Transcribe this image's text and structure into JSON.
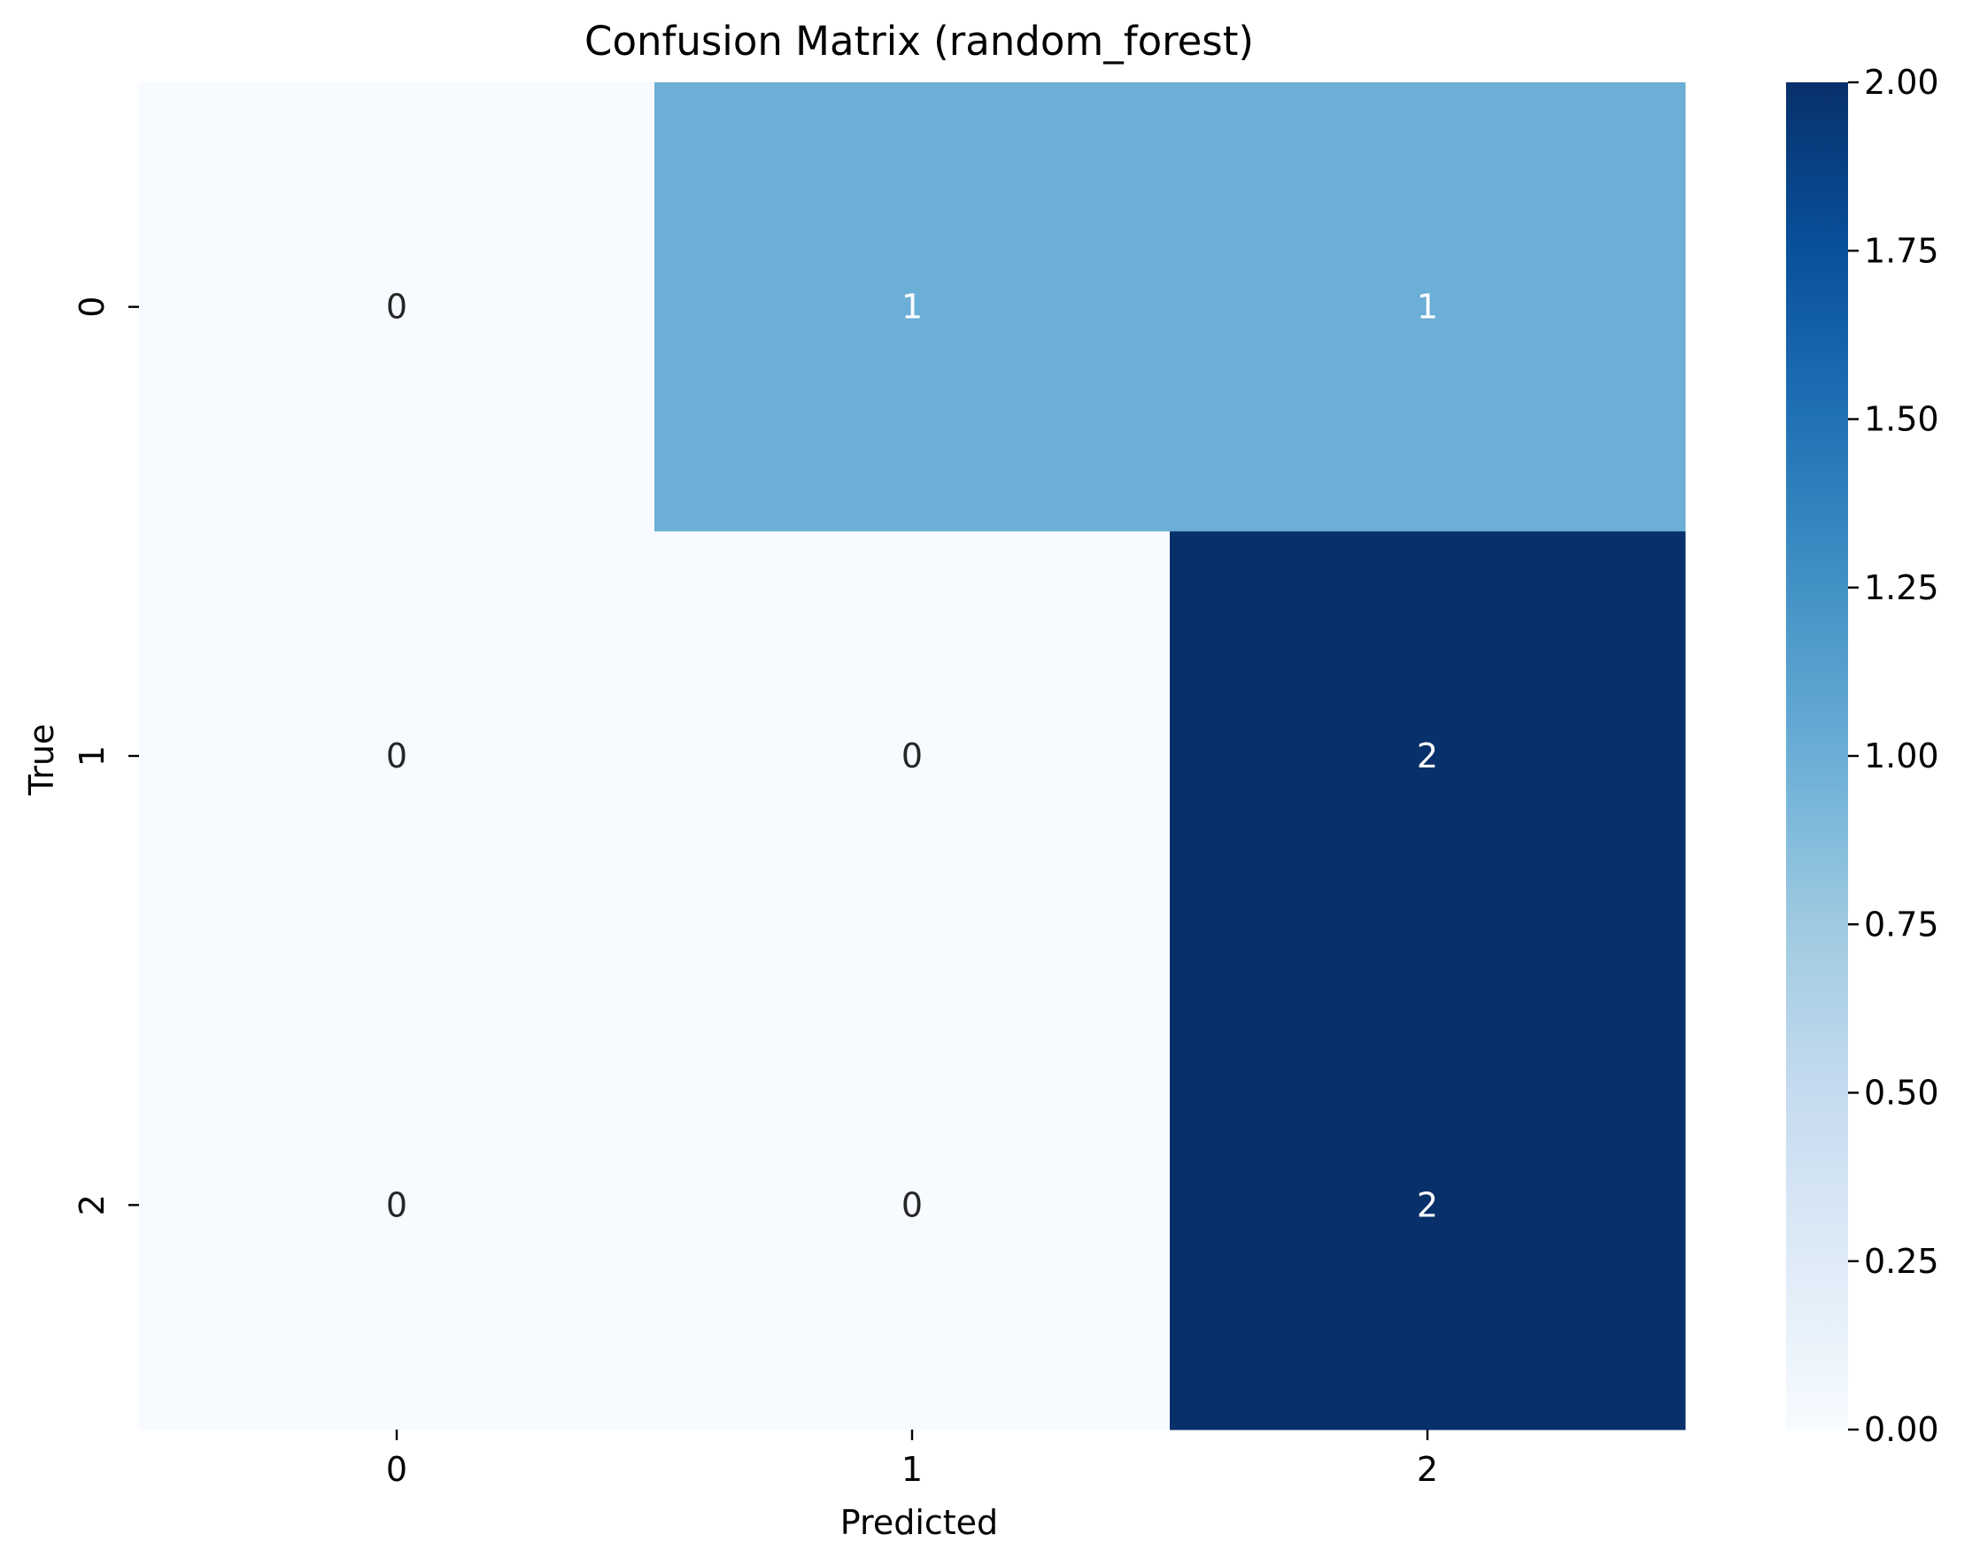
{
  "chart_data": {
    "type": "heatmap",
    "title": "Confusion Matrix (random_forest)",
    "xlabel": "Predicted",
    "ylabel": "True",
    "x_categories": [
      "0",
      "1",
      "2"
    ],
    "y_categories": [
      "0",
      "1",
      "2"
    ],
    "values": [
      [
        0,
        1,
        1
      ],
      [
        0,
        0,
        2
      ],
      [
        0,
        0,
        2
      ]
    ],
    "colormap": "Blues",
    "vmin": 0,
    "vmax": 2,
    "colorbar_ticks": [
      "0.00",
      "0.25",
      "0.50",
      "0.75",
      "1.00",
      "1.25",
      "1.50",
      "1.75",
      "2.00"
    ],
    "annotations": true,
    "grid": false
  }
}
